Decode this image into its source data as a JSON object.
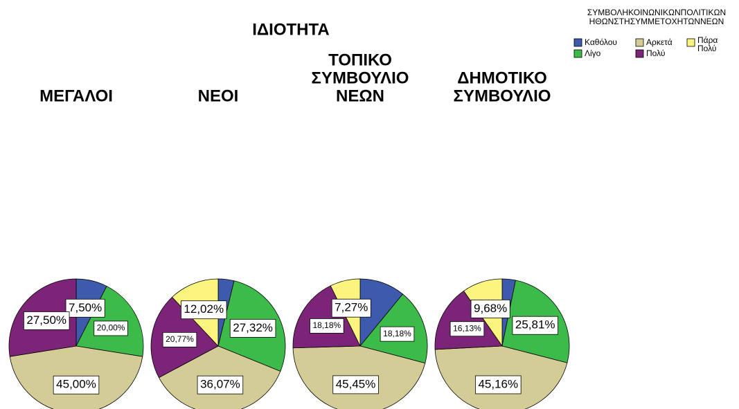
{
  "title": "ΙΔΙΟΤΗΤΑ",
  "legend_title": [
    "ΣΥΜΒΟΛΗΚΟΙΝΩΝΙΚΩΝΠΟΛΙΤΙΚΩΝ",
    "ΗΘΩΝΣΤΗΣΥΜΜΕΤΟΧΗΤΩΝΝΕΩΝ"
  ],
  "chart_data": [
    {
      "type": "pie",
      "title": [
        "ΜΕΓΑΛΟΙ"
      ],
      "categories": [
        "Καθόλου",
        "Λίγο",
        "Αρκετά",
        "Πολύ",
        "Πάρα Πολύ"
      ],
      "colors": [
        "#3d5aad",
        "#3dbb4a",
        "#d4cc96",
        "#7c2578",
        "#fbf57f"
      ],
      "values": [
        7.5,
        20,
        45,
        27.5,
        0
      ],
      "value_labels": [
        "7,50%",
        "20,00%",
        "45,00%",
        "27,50%",
        null
      ]
    },
    {
      "type": "pie",
      "title": [
        "ΝΕΟΙ"
      ],
      "categories": [
        "Καθόλου",
        "Λίγο",
        "Αρκετά",
        "Πολύ",
        "Πάρα Πολύ"
      ],
      "colors": [
        "#3d5aad",
        "#3dbb4a",
        "#d4cc96",
        "#7c2578",
        "#fbf57f"
      ],
      "values": [
        3.82,
        27.32,
        36.07,
        20.77,
        12.02
      ],
      "value_labels": [
        null,
        "27,32%",
        "36,07%",
        "20,77%",
        "12,02%"
      ]
    },
    {
      "type": "pie",
      "title": [
        "ΤΟΠΙΚΟ",
        "ΣΥΜΒΟΥΛΙΟ",
        "ΝΕΩΝ"
      ],
      "categories": [
        "Καθόλου",
        "Λίγο",
        "Αρκετά",
        "Πολύ",
        "Πάρα Πολύ"
      ],
      "colors": [
        "#3d5aad",
        "#3dbb4a",
        "#d4cc96",
        "#7c2578",
        "#fbf57f"
      ],
      "values": [
        10.92,
        18.18,
        45.45,
        18.18,
        7.27
      ],
      "value_labels": [
        null,
        "18,18%",
        "45,45%",
        "18,18%",
        "7,27%"
      ]
    },
    {
      "type": "pie",
      "title": [
        "ΔΗΜΟΤΙΚΟ",
        "ΣΥΜΒΟΥΛΙΟ"
      ],
      "categories": [
        "Καθόλου",
        "Λίγο",
        "Αρκετά",
        "Πολύ",
        "Πάρα Πολύ"
      ],
      "colors": [
        "#3d5aad",
        "#3dbb4a",
        "#d4cc96",
        "#7c2578",
        "#fbf57f"
      ],
      "values": [
        3.22,
        25.81,
        45.16,
        16.13,
        9.68
      ],
      "value_labels": [
        null,
        "25,81%",
        "45,16%",
        "16,13%",
        "9,68%"
      ]
    }
  ]
}
